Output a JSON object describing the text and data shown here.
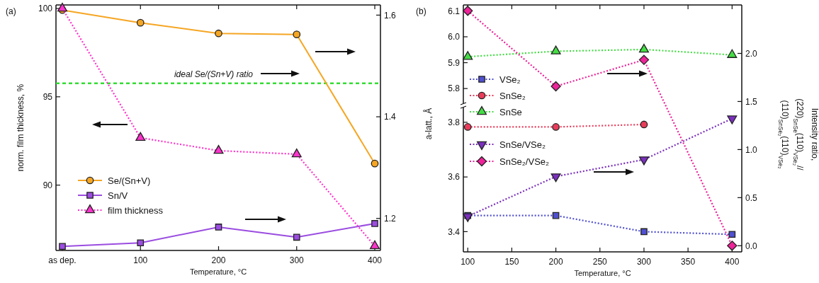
{
  "chart_data": [
    {
      "type": "line",
      "annotations": [
        "(a)"
      ],
      "categories": [
        "as dep.",
        "100",
        "200",
        "300",
        "400"
      ],
      "xlabel": "Temperature, °C",
      "ylabel": "norm. film thickness, %",
      "ylim": [
        86.3,
        100.2
      ],
      "yticks": [
        90,
        95,
        100
      ],
      "y2lim": [
        1.137,
        1.62
      ],
      "y2ticks": [
        1.2,
        1.4,
        1.6
      ],
      "legend": "bottom left",
      "ref_lines": [
        {
          "axis": "y2",
          "value": 1.466,
          "label": "ideal Se/(Sn+V) ratio",
          "color": "#33dd33",
          "line_style": "dashed"
        }
      ],
      "series": [
        {
          "name": "Se/(Sn+V)",
          "color": "#f5a623",
          "marker": "circle",
          "line_style": "solid",
          "axis": "y2",
          "values": [
            1.61,
            1.585,
            1.564,
            1.562,
            1.308
          ]
        },
        {
          "name": "Sn/V",
          "color": "#9b4de0",
          "marker": "square",
          "line_style": "solid",
          "axis": "y2",
          "values": [
            1.145,
            1.152,
            1.183,
            1.163,
            1.19
          ]
        },
        {
          "name": "film thickness",
          "color": "#ff33cc",
          "marker": "triangle",
          "line_style": "dotted",
          "values": [
            100,
            92.68,
            91.95,
            91.75,
            86.55
          ]
        }
      ]
    },
    {
      "type": "line",
      "annotations": [
        "(b)"
      ],
      "xlim": [
        95,
        411
      ],
      "xticks": [
        100,
        150,
        200,
        250,
        300,
        350,
        400
      ],
      "ylim": [
        5.743,
        6.123
      ],
      "yticks": [
        5.8,
        5.9,
        {
          "value": 6.0,
          "label": "6.0"
        },
        6.1
      ],
      "tick_labels": "y",
      "legend": "left",
      "series": [
        {
          "name": "SnSe",
          "color": "#44dd44",
          "marker": "triangle",
          "line_style": "dotted",
          "x": [
            100,
            200,
            300,
            400
          ],
          "values": [
            5.923,
            5.944,
            5.951,
            5.93
          ]
        }
      ]
    },
    {
      "type": "line",
      "xlabel": "Temperature, °C",
      "ylabel": "a-latt., Å",
      "xlim": [
        95,
        411
      ],
      "xticks": [
        100,
        150,
        200,
        250,
        300,
        350,
        400
      ],
      "ylim": [
        3.326,
        3.854
      ],
      "yticks": [
        3.4,
        3.6,
        3.8
      ],
      "legend": "left",
      "series": [
        {
          "name": "VSe₂",
          "color": "#5050d0",
          "marker": "square",
          "line_style": "dotted",
          "x": [
            100,
            200,
            300,
            400
          ],
          "values": [
            3.459,
            3.459,
            3.4,
            3.39
          ]
        },
        {
          "name": "SnSe₂",
          "color": "#e83c5a",
          "marker": "circle",
          "line_style": "dotted",
          "x": [
            100,
            200,
            300
          ],
          "values": [
            3.783,
            3.783,
            3.792
          ]
        }
      ]
    },
    {
      "type": "line",
      "ylabel": "Intensity ratio,\n(220)$_{SnSe}$(110)$_{VSe₂}$//\n(110)$_{SnSe₂}$(110)$_{VSe₂}$",
      "xlim": [
        95,
        411
      ],
      "ylim": [
        -0.064,
        2.504
      ],
      "yticks": [
        {
          "value": 0,
          "label": "0.0"
        },
        0.5,
        {
          "value": 1,
          "label": "1.0"
        },
        1.5,
        {
          "value": 2,
          "label": "2.0"
        }
      ],
      "tick_labels": "y",
      "legend": "left",
      "series": [
        {
          "name": "SnSe/VSe₂",
          "color": "#7b2fbe",
          "marker": "triangle-down",
          "line_style": "dotted",
          "x": [
            100,
            200,
            300,
            400
          ],
          "values": [
            0.305,
            0.72,
            0.896,
            1.322
          ]
        },
        {
          "name": "SnSe₂/VSe₂",
          "color": "#ee2299",
          "marker": "diamond",
          "line_style": "dotted",
          "x": [
            100,
            200,
            300,
            400
          ],
          "values": [
            2.443,
            1.658,
            1.933,
            0
          ]
        }
      ]
    }
  ]
}
